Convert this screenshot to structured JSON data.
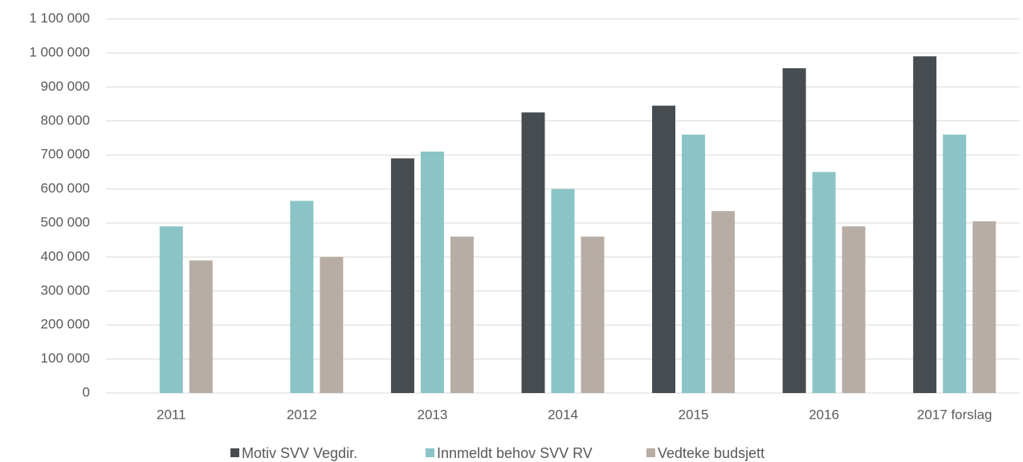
{
  "chart_data": {
    "type": "bar",
    "categories": [
      "2011",
      "2012",
      "2013",
      "2014",
      "2015",
      "2016",
      "2017 forslag"
    ],
    "series": [
      {
        "name": "Motiv SVV Vegdir.",
        "color": "#474c50",
        "values": [
          null,
          null,
          690000,
          825000,
          845000,
          955000,
          990000
        ]
      },
      {
        "name": "Innmeldt behov SVV RV",
        "color": "#8ac4c7",
        "values": [
          490000,
          565000,
          710000,
          600000,
          760000,
          650000,
          760000
        ]
      },
      {
        "name": "Vedteke budsjett",
        "color": "#b8ada4",
        "values": [
          390000,
          400000,
          460000,
          460000,
          535000,
          490000,
          505000
        ]
      }
    ],
    "ylim": [
      0,
      1100000
    ],
    "yticks": [
      0,
      {
        "value": 100000,
        "label": "100 000"
      },
      {
        "value": 200000,
        "label": "200 000"
      },
      {
        "value": 300000,
        "label": "300 000"
      },
      {
        "value": 400000,
        "label": "400 000"
      },
      {
        "value": 500000,
        "label": "500 000"
      },
      {
        "value": 600000,
        "label": "600 000"
      },
      {
        "value": 700000,
        "label": "700 000"
      },
      {
        "value": 800000,
        "label": "800 000"
      },
      {
        "value": 900000,
        "label": "900 000"
      },
      {
        "value": 1000000,
        "label": "1 000 000"
      },
      {
        "value": 1100000,
        "label": "1 100 000"
      }
    ],
    "grid": true,
    "legend": "bottom"
  }
}
